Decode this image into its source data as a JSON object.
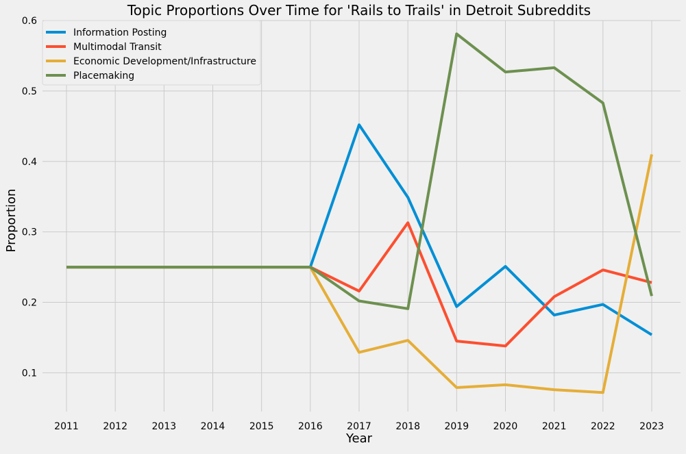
{
  "chart_data": {
    "type": "line",
    "title": "Topic Proportions Over Time for 'Rails to Trails' in Detroit Subreddits",
    "xlabel": "Year",
    "ylabel": "Proportion",
    "x": [
      "2011",
      "2012",
      "2013",
      "2014",
      "2015",
      "2016",
      "2017",
      "2018",
      "2019",
      "2020",
      "2021",
      "2022",
      "2023"
    ],
    "ylim": [
      0.045,
      0.6
    ],
    "yticks": [
      "0.1",
      "0.2",
      "0.3",
      "0.4",
      "0.5",
      "0.6"
    ],
    "grid": true,
    "legend_position": "top-left",
    "series": [
      {
        "name": "Information Posting",
        "color": "#008fd5",
        "values": [
          0.25,
          0.25,
          0.25,
          0.25,
          0.25,
          0.25,
          0.452,
          0.349,
          0.194,
          0.251,
          0.182,
          0.197,
          0.154
        ]
      },
      {
        "name": "Multimodal Transit",
        "color": "#fc4f30",
        "values": [
          0.25,
          0.25,
          0.25,
          0.25,
          0.25,
          0.25,
          0.216,
          0.313,
          0.145,
          0.138,
          0.208,
          0.246,
          0.228
        ]
      },
      {
        "name": "Economic Development/Infrastructure",
        "color": "#e5ae38",
        "values": [
          0.25,
          0.25,
          0.25,
          0.25,
          0.25,
          0.25,
          0.129,
          0.146,
          0.079,
          0.083,
          0.076,
          0.072,
          0.41
        ]
      },
      {
        "name": "Placemaking",
        "color": "#6d904f",
        "values": [
          0.25,
          0.25,
          0.25,
          0.25,
          0.25,
          0.25,
          0.202,
          0.191,
          0.581,
          0.527,
          0.533,
          0.483,
          0.209
        ]
      }
    ]
  }
}
